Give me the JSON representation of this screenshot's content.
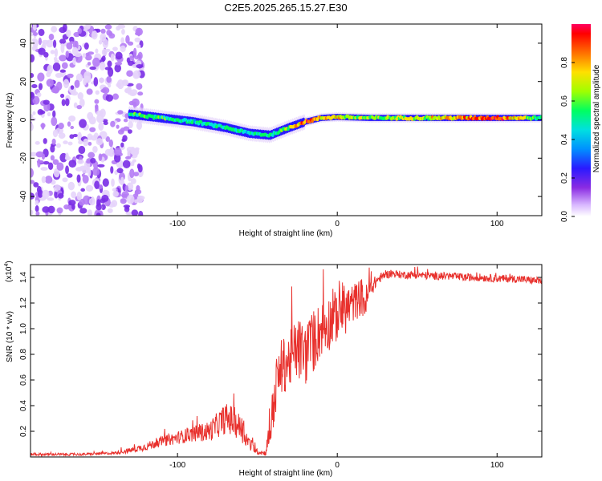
{
  "chart_data": [
    {
      "type": "heatmap",
      "title": "C2E5.2025.265.15.27.E30",
      "xlabel": "Height of straight line (km)",
      "ylabel": "Frequency (Hz)",
      "xlim": [
        -192,
        128
      ],
      "ylim": [
        -50,
        50
      ],
      "x_ticks": [
        "-100",
        "0",
        "100"
      ],
      "x_tick_values": [
        -100,
        0,
        100
      ],
      "y_ticks": [
        "-40",
        "-20",
        "0",
        "20",
        "40"
      ],
      "y_tick_values": [
        -40,
        -20,
        0,
        20,
        40
      ],
      "colorbar": {
        "label": "Normalized spectral amplitude",
        "range": [
          0,
          1
        ],
        "ticks": [
          "0.0",
          "0.2",
          "0.4",
          "0.6",
          "0.8"
        ],
        "tick_values": [
          0.0,
          0.2,
          0.4,
          0.6,
          0.8
        ]
      },
      "ridge": {
        "description_points_x": [
          -130,
          -110,
          -90,
          -70,
          -55,
          -42,
          -30,
          -20,
          -10,
          0,
          20,
          60,
          100,
          128
        ],
        "frequency_hz": [
          3,
          1,
          -1,
          -4,
          -7,
          -8,
          -4,
          -1,
          1,
          1.5,
          1,
          1,
          1,
          1
        ],
        "peak_amplitude": [
          0.5,
          0.55,
          0.45,
          0.5,
          0.45,
          0.5,
          0.7,
          0.9,
          0.7,
          0.75,
          0.6,
          0.7,
          0.95,
          0.5
        ]
      },
      "noise_region_x": [
        -192,
        -128
      ]
    },
    {
      "type": "line",
      "title": "",
      "xlabel": "Height of straight line (km)",
      "ylabel": "SNR (10 * v/v)",
      "scale_label": "(x10",
      "scale_exponent": "4",
      "scale_close": ")",
      "xlim": [
        -192,
        128
      ],
      "ylim": [
        0,
        1.5
      ],
      "x_ticks": [
        "-100",
        "0",
        "100"
      ],
      "x_tick_values": [
        -100,
        0,
        100
      ],
      "y_ticks": [
        "0.2",
        "0.4",
        "0.6",
        "0.8",
        "1.0",
        "1.2",
        "1.4"
      ],
      "y_tick_values": [
        0.2,
        0.4,
        0.6,
        0.8,
        1.0,
        1.2,
        1.4
      ],
      "series": [
        {
          "name": "SNR",
          "color": "#e8302c",
          "x": [
            -192,
            -160,
            -140,
            -130,
            -120,
            -110,
            -100,
            -90,
            -80,
            -75,
            -70,
            -65,
            -60,
            -55,
            -50,
            -45,
            -42,
            -40,
            -38,
            -35,
            -30,
            -25,
            -20,
            -15,
            -10,
            -5,
            0,
            5,
            10,
            15,
            18,
            20,
            25,
            30,
            35,
            40,
            50,
            60,
            70,
            80,
            90,
            100,
            110,
            120,
            128
          ],
          "y": [
            0.02,
            0.02,
            0.03,
            0.05,
            0.08,
            0.12,
            0.15,
            0.18,
            0.2,
            0.25,
            0.3,
            0.28,
            0.22,
            0.1,
            0.04,
            0.03,
            0.2,
            0.4,
            0.55,
            0.7,
            0.75,
            0.85,
            0.8,
            0.9,
            1.0,
            1.05,
            1.1,
            1.15,
            1.2,
            1.25,
            1.2,
            1.3,
            1.38,
            1.42,
            1.43,
            1.42,
            1.42,
            1.41,
            1.41,
            1.4,
            1.4,
            1.39,
            1.39,
            1.38,
            1.37
          ],
          "noise_amplitude": [
            0.01,
            0.01,
            0.01,
            0.02,
            0.03,
            0.04,
            0.05,
            0.06,
            0.08,
            0.1,
            0.12,
            0.12,
            0.1,
            0.06,
            0.02,
            0.02,
            0.15,
            0.2,
            0.2,
            0.22,
            0.22,
            0.25,
            0.25,
            0.25,
            0.22,
            0.22,
            0.2,
            0.2,
            0.15,
            0.15,
            0.15,
            0.08,
            0.04,
            0.03,
            0.03,
            0.03,
            0.03,
            0.03,
            0.03,
            0.03,
            0.03,
            0.03,
            0.03,
            0.03,
            0.03
          ]
        }
      ]
    }
  ]
}
